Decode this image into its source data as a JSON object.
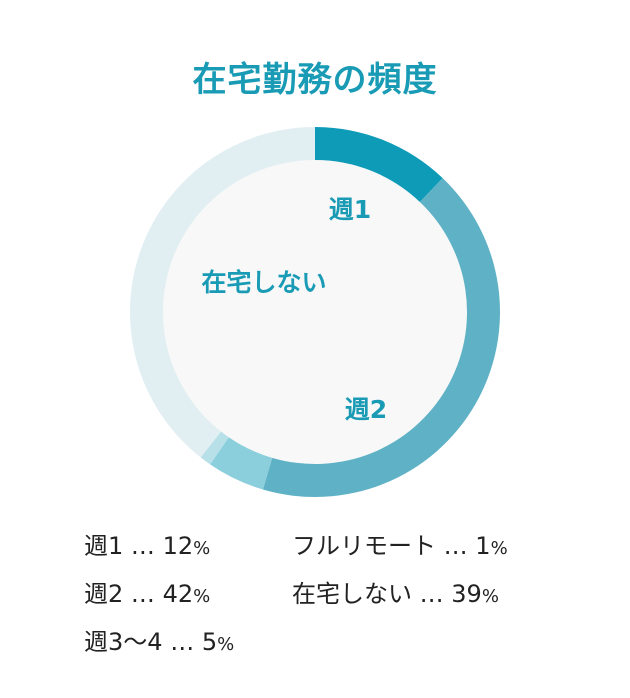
{
  "title": "在宅勤務の頻度",
  "chart_data": {
    "type": "pie",
    "title": "在宅勤務の頻度",
    "categories": [
      "週1",
      "週2",
      "週3〜4",
      "フルリモート",
      "在宅しない"
    ],
    "values": [
      12,
      42,
      5,
      1,
      39
    ],
    "unit": "%",
    "colors": [
      "#0e9bb8",
      "#5fb2c6",
      "#8acfdb",
      "#b7e0e8",
      "#e1eff3"
    ],
    "chart_labels": [
      "週1",
      "週2",
      "在宅しない"
    ],
    "legend_separator": "…",
    "legend": [
      {
        "label": "週1",
        "value": "12",
        "unit": "%"
      },
      {
        "label": "週2",
        "value": "42",
        "unit": "%"
      },
      {
        "label": "週3〜4",
        "value": "5",
        "unit": "%"
      },
      {
        "label": "フルリモート",
        "value": "1",
        "unit": "%"
      },
      {
        "label": "在宅しない",
        "value": "39",
        "unit": "%"
      }
    ]
  }
}
